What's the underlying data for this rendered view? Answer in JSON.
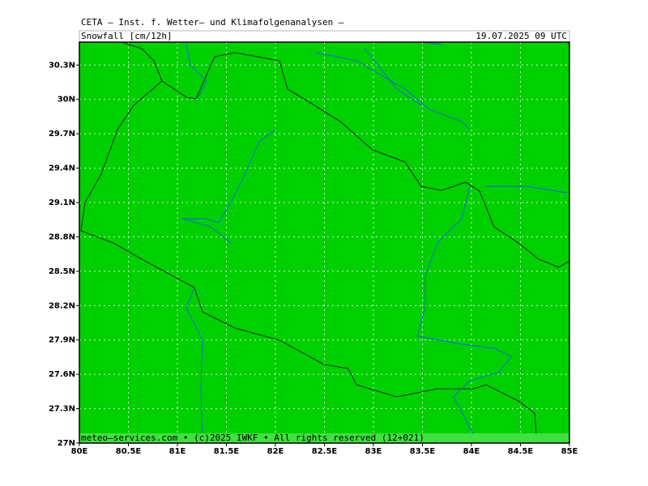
{
  "header": {
    "title": "CETA — Inst. f. Wetter— und Klimafolgenanalysen —",
    "subtitle": "Snowfall [cm/12h]",
    "date": "19.07.2025 09 UTC"
  },
  "footer": "meteo—services.com • (c)2025 IWKF • All rights reserved (12+021)",
  "map": {
    "lonlim": [
      80,
      85
    ],
    "latlim": [
      27,
      30.5
    ],
    "lonticks": [
      {
        "value": 80,
        "label": "80E"
      },
      {
        "value": 80.5,
        "label": "80.5E"
      },
      {
        "value": 81,
        "label": "81E"
      },
      {
        "value": 81.5,
        "label": "81.5E"
      },
      {
        "value": 82,
        "label": "82E"
      },
      {
        "value": 82.5,
        "label": "82.5E"
      },
      {
        "value": 83,
        "label": "83E"
      },
      {
        "value": 83.5,
        "label": "83.5E"
      },
      {
        "value": 84,
        "label": "84E"
      },
      {
        "value": 84.5,
        "label": "84.5E"
      },
      {
        "value": 85,
        "label": "85E"
      }
    ],
    "latticks": [
      {
        "value": 27,
        "label": "27N"
      },
      {
        "value": 27.3,
        "label": "27.3N"
      },
      {
        "value": 27.6,
        "label": "27.6N"
      },
      {
        "value": 27.9,
        "label": "27.9N"
      },
      {
        "value": 28.2,
        "label": "28.2N"
      },
      {
        "value": 28.5,
        "label": "28.5N"
      },
      {
        "value": 28.8,
        "label": "28.8N"
      },
      {
        "value": 29.1,
        "label": "29.1N"
      },
      {
        "value": 29.4,
        "label": "29.4N"
      },
      {
        "value": 29.7,
        "label": "29.7N"
      },
      {
        "value": 30,
        "label": "30N"
      },
      {
        "value": 30.3,
        "label": "30.3N"
      }
    ],
    "fill_color": "#00d000",
    "grid": true
  }
}
